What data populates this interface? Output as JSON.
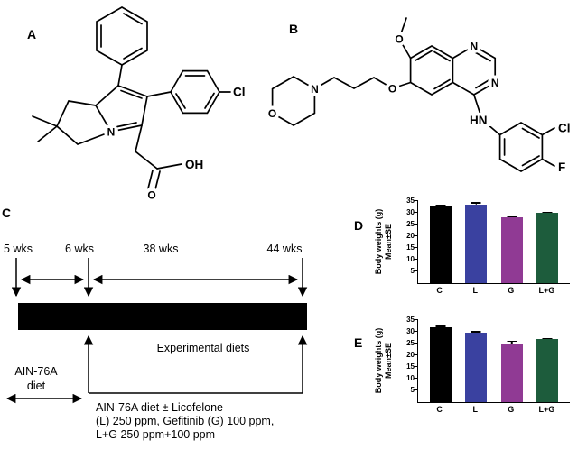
{
  "panels": {
    "a": {
      "label": "A",
      "atoms": {
        "n": "N",
        "cl": "Cl",
        "o": "O",
        "oh": "OH"
      }
    },
    "b": {
      "label": "B",
      "atoms": {
        "morpholine_o": "O",
        "morpholine_n": "N",
        "ether_o": "O",
        "methoxy_o": "O",
        "ring_n_top": "N",
        "ring_n_right": "N",
        "hn": "HN",
        "cl": "Cl",
        "f": "F"
      }
    },
    "c": {
      "label": "C",
      "timepoints": [
        "5 wks",
        "6 wks",
        "38 wks",
        "44 wks"
      ],
      "bar_caption": "Experimental diets",
      "control_diet_line1": "AIN-76A",
      "control_diet_line2": "diet",
      "treatment_line1": "AIN-76A diet ± Licofelone",
      "treatment_line2": "(L) 250 ppm, Gefitinib (G) 100 ppm,",
      "treatment_line3": "L+G 250 ppm+100 ppm"
    },
    "d": {
      "label": "D"
    },
    "e": {
      "label": "E"
    }
  },
  "chart_data": [
    {
      "type": "bar",
      "panel": "D",
      "categories": [
        "C",
        "L",
        "G",
        "L+G"
      ],
      "values": [
        32.5,
        33.2,
        27.6,
        29.6
      ],
      "errors": [
        1.1,
        1.4,
        1.0,
        0.6
      ],
      "bar_colors": [
        "#000000",
        "#3a41a0",
        "#903a94",
        "#1d5c3c"
      ],
      "ylabel_line1": "Body weights (g)",
      "ylabel_line2": "Mean±SE",
      "ylim": [
        0,
        35
      ],
      "yticks": [
        5,
        10,
        15,
        20,
        25,
        30,
        35
      ],
      "grid": false,
      "legend": "none"
    },
    {
      "type": "bar",
      "panel": "E",
      "categories": [
        "C",
        "L",
        "G",
        "L+G"
      ],
      "values": [
        31.6,
        29.2,
        24.6,
        26.6
      ],
      "errors": [
        0.9,
        1.2,
        1.7,
        0.7
      ],
      "bar_colors": [
        "#000000",
        "#3a41a0",
        "#903a94",
        "#1d5c3c"
      ],
      "ylabel_line1": "Body weights (g)",
      "ylabel_line2": "Mean±SE",
      "ylim": [
        0,
        35
      ],
      "yticks": [
        5,
        10,
        15,
        20,
        25,
        30,
        35
      ],
      "grid": false,
      "legend": "none"
    }
  ]
}
